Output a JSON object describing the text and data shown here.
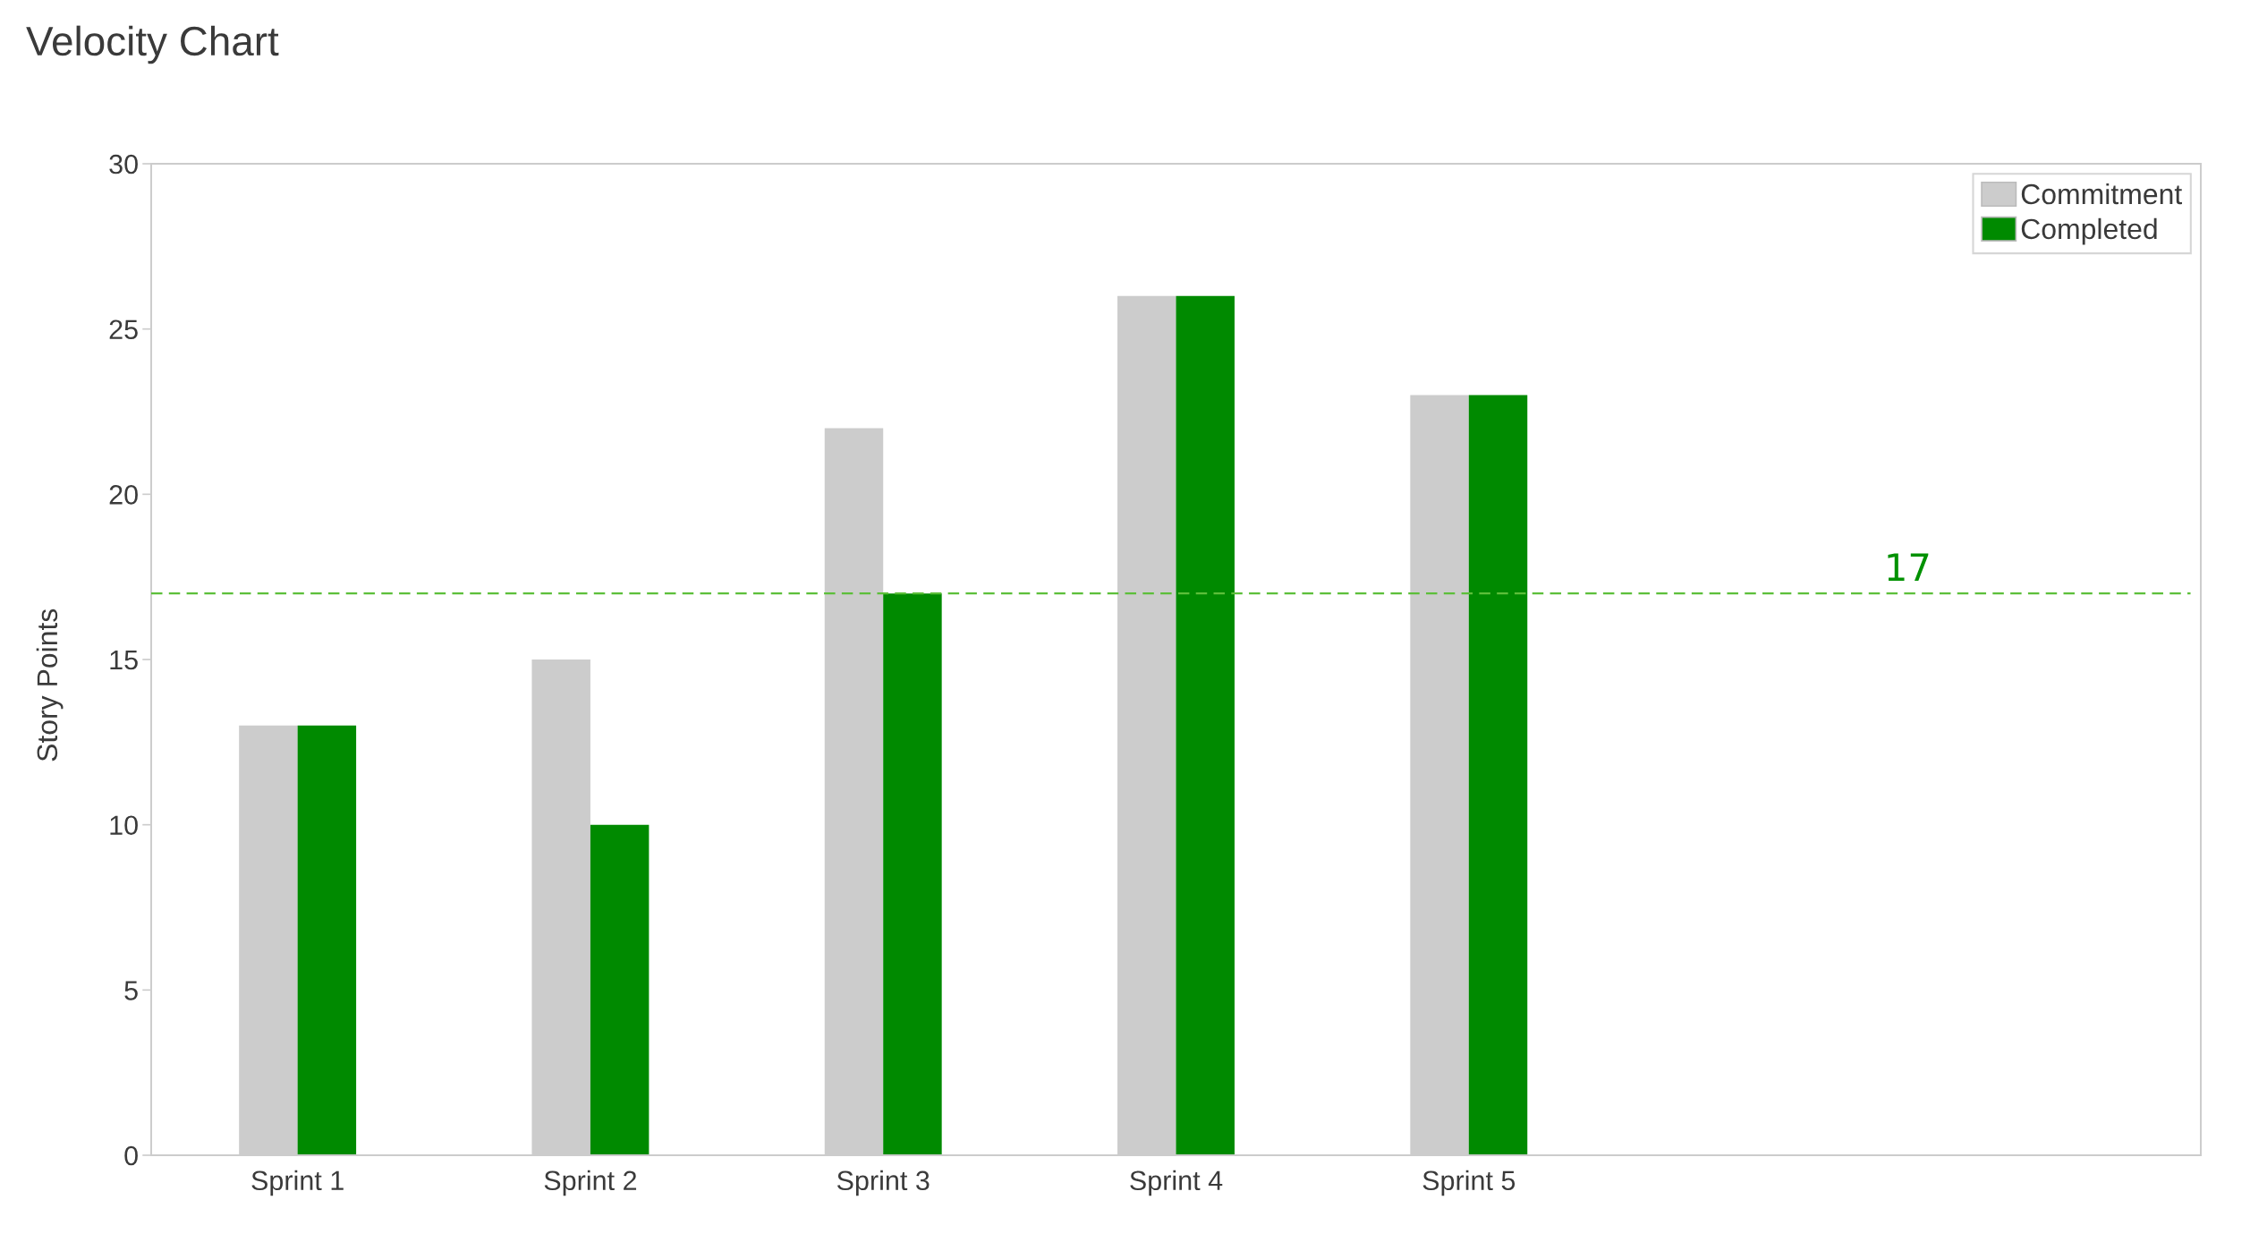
{
  "chart_data": {
    "type": "bar",
    "title": "Velocity Chart",
    "ylabel": "Story Points",
    "categories": [
      "Sprint 1",
      "Sprint 2",
      "Sprint 3",
      "Sprint 4",
      "Sprint 5",
      null,
      null
    ],
    "series": [
      {
        "name": "Commitment",
        "color": "#cccccc",
        "values": [
          13,
          15,
          22,
          26,
          23,
          null,
          null
        ]
      },
      {
        "name": "Completed",
        "color": "#008a00",
        "values": [
          13,
          10,
          17,
          26,
          23,
          null,
          null
        ]
      }
    ],
    "ylim": [
      0,
      30
    ],
    "yticks": [
      0,
      5,
      10,
      15,
      20,
      25,
      30
    ],
    "ref_lines": [
      {
        "axis": "y",
        "value": 17,
        "label": "17",
        "color": "#5cbf3a",
        "line_style": "dashed"
      }
    ],
    "legend": "top right"
  }
}
